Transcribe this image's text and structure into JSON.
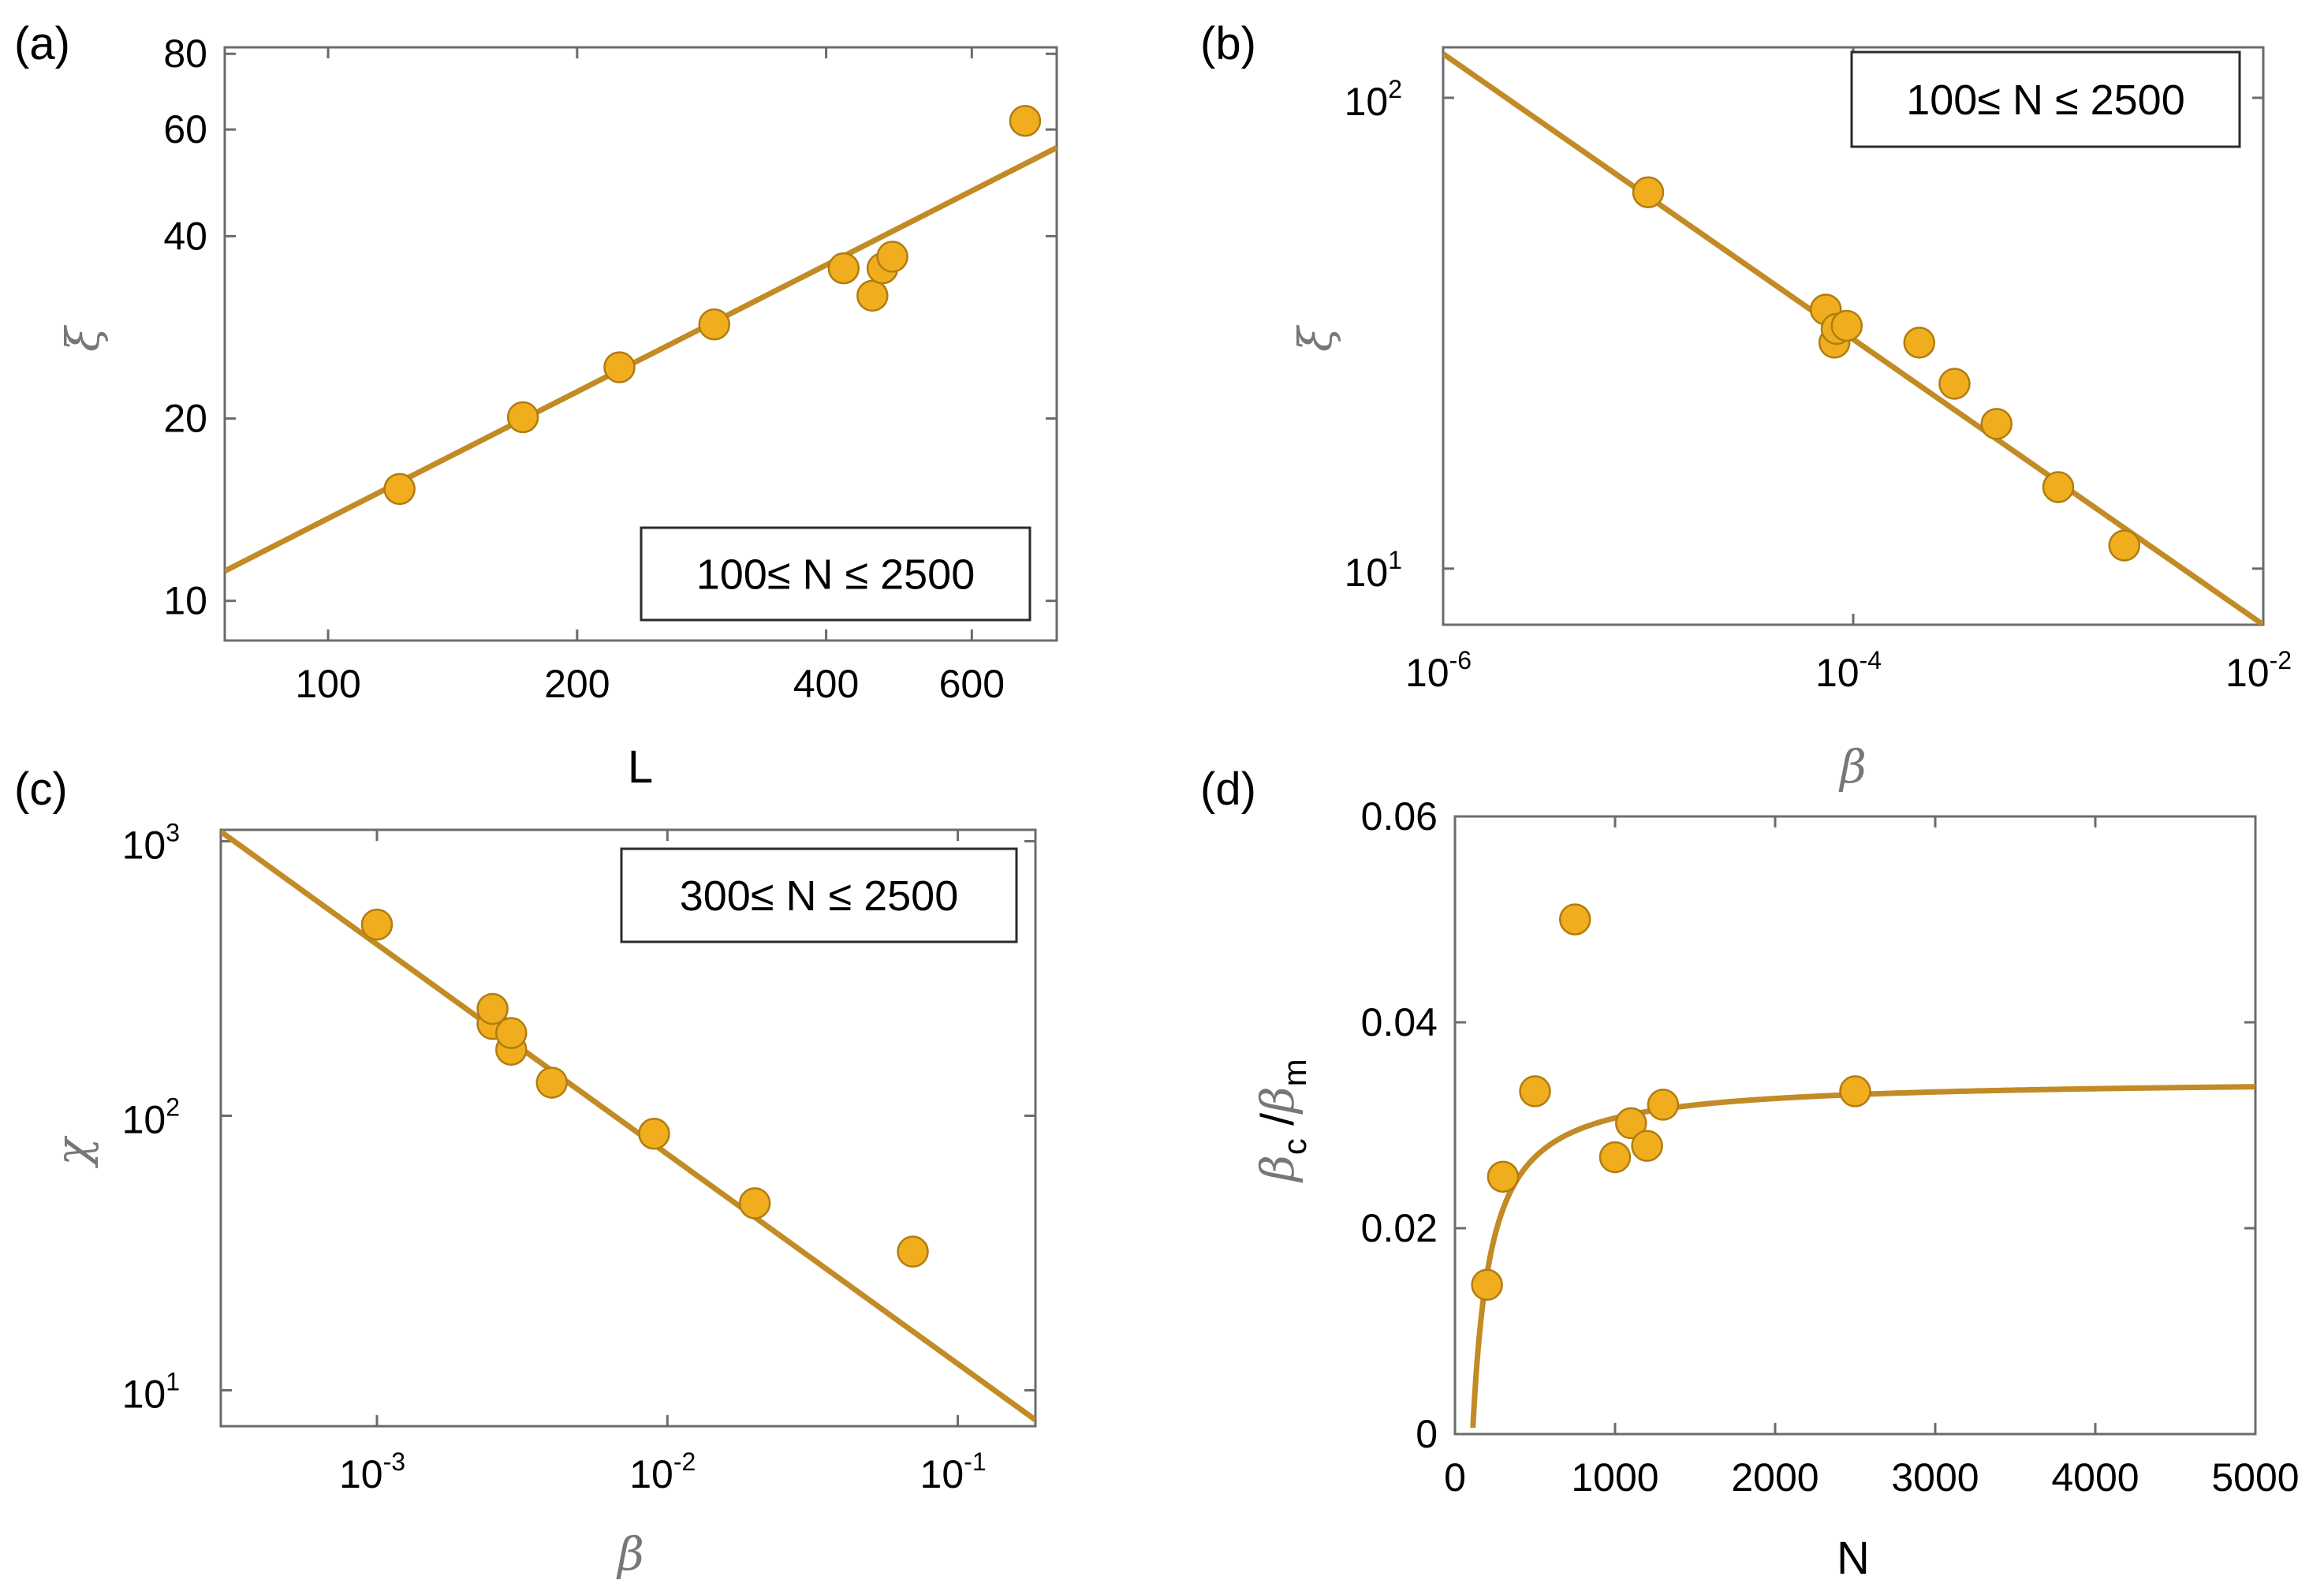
{
  "colors": {
    "marker_fill": "#f0ae1e",
    "marker_edge": "#b17c10",
    "fit_line": "#c28b25"
  },
  "chart_data": [
    {
      "panel": "a",
      "panel_label": "(a)",
      "type": "scatter",
      "xscale": "log",
      "yscale": "log",
      "xlabel": "L",
      "ylabel": "ξ",
      "xlim": [
        75,
        760
      ],
      "ylim": [
        8.6,
        82
      ],
      "xticks": [
        {
          "v": 100,
          "label": "100"
        },
        {
          "v": 200,
          "label": "200"
        },
        {
          "v": 400,
          "label": "400"
        },
        {
          "v": 600,
          "label": "600"
        }
      ],
      "yticks": [
        {
          "v": 10,
          "label": "10"
        },
        {
          "v": 20,
          "label": "20"
        },
        {
          "v": 40,
          "label": "40"
        },
        {
          "v": 60,
          "label": "60"
        },
        {
          "v": 80,
          "label": "80"
        }
      ],
      "legend": "100≤ N ≤ 2500",
      "legend_position": "bottom-right",
      "points": [
        {
          "x": 122,
          "y": 15.3
        },
        {
          "x": 172,
          "y": 20.1
        },
        {
          "x": 225,
          "y": 24.3
        },
        {
          "x": 293,
          "y": 28.6
        },
        {
          "x": 420,
          "y": 35.4
        },
        {
          "x": 455,
          "y": 31.9
        },
        {
          "x": 468,
          "y": 35.4
        },
        {
          "x": 481,
          "y": 37.0
        },
        {
          "x": 696,
          "y": 62.0
        }
      ],
      "fit": {
        "kind": "power",
        "points": [
          {
            "x": 75,
            "y": 11.2
          },
          {
            "x": 760,
            "y": 56.0
          }
        ]
      }
    },
    {
      "panel": "b",
      "panel_label": "(b)",
      "type": "scatter",
      "xscale": "log",
      "yscale": "log",
      "xlabel": "β",
      "ylabel": "ξ",
      "xlim": [
        1e-06,
        0.01
      ],
      "ylim": [
        7.6,
        128
      ],
      "xticks": [
        {
          "v": 1e-06,
          "base": "10",
          "exp": "-6"
        },
        {
          "v": 0.0001,
          "base": "10",
          "exp": "-4"
        },
        {
          "v": 0.01,
          "base": "10",
          "exp": "-2"
        }
      ],
      "yticks": [
        {
          "v": 10,
          "base": "10",
          "exp": "1"
        },
        {
          "v": 100,
          "base": "10",
          "exp": "2"
        }
      ],
      "legend": "100≤ N ≤ 2500",
      "legend_position": "top-right",
      "points": [
        {
          "x": 1e-05,
          "y": 63.0
        },
        {
          "x": 7.35e-05,
          "y": 35.5
        },
        {
          "x": 8.1e-05,
          "y": 30.2
        },
        {
          "x": 8.3e-05,
          "y": 32.3
        },
        {
          "x": 9.3e-05,
          "y": 32.8
        },
        {
          "x": 0.00021,
          "y": 30.2
        },
        {
          "x": 0.000312,
          "y": 24.7
        },
        {
          "x": 0.0005,
          "y": 20.3
        },
        {
          "x": 0.001,
          "y": 14.9
        },
        {
          "x": 0.0021,
          "y": 11.2
        }
      ],
      "fit": {
        "kind": "power",
        "points": [
          {
            "x": 1e-06,
            "y": 124
          },
          {
            "x": 0.01,
            "y": 7.6
          }
        ]
      }
    },
    {
      "panel": "c",
      "panel_label": "(c)",
      "type": "scatter",
      "xscale": "log",
      "yscale": "log",
      "xlabel": "β",
      "ylabel": "χ",
      "xlim": [
        0.00029,
        0.185
      ],
      "ylim": [
        7.4,
        1100
      ],
      "xticks": [
        {
          "v": 0.001,
          "base": "10",
          "exp": "-3"
        },
        {
          "v": 0.01,
          "base": "10",
          "exp": "-2"
        },
        {
          "v": 0.1,
          "base": "10",
          "exp": "-1"
        }
      ],
      "yticks": [
        {
          "v": 10,
          "base": "10",
          "exp": "1"
        },
        {
          "v": 100,
          "base": "10",
          "exp": "2"
        },
        {
          "v": 1000,
          "base": "10",
          "exp": "3"
        }
      ],
      "legend": "300≤ N ≤ 2500",
      "legend_position": "top-right",
      "points": [
        {
          "x": 0.001,
          "y": 497
        },
        {
          "x": 0.0025,
          "y": 216
        },
        {
          "x": 0.0025,
          "y": 245
        },
        {
          "x": 0.0029,
          "y": 174
        },
        {
          "x": 0.0029,
          "y": 200
        },
        {
          "x": 0.004,
          "y": 132
        },
        {
          "x": 0.009,
          "y": 86
        },
        {
          "x": 0.02,
          "y": 48
        },
        {
          "x": 0.07,
          "y": 32
        }
      ],
      "fit": {
        "kind": "power",
        "points": [
          {
            "x": 0.00029,
            "y": 1084
          },
          {
            "x": 0.185,
            "y": 7.8
          }
        ]
      }
    },
    {
      "panel": "d",
      "panel_label": "(d)",
      "type": "scatter",
      "xscale": "linear",
      "yscale": "linear",
      "xlabel": "N",
      "ylabel": "βc/βm",
      "ylabel_parts": {
        "b1": "β",
        "s1": "c",
        "slash": "/",
        "b2": "β",
        "s2": "m"
      },
      "xlim": [
        0,
        5000
      ],
      "ylim": [
        0,
        0.06
      ],
      "xticks": [
        {
          "v": 0,
          "label": "0"
        },
        {
          "v": 1000,
          "label": "1000"
        },
        {
          "v": 2000,
          "label": "2000"
        },
        {
          "v": 3000,
          "label": "3000"
        },
        {
          "v": 4000,
          "label": "4000"
        },
        {
          "v": 5000,
          "label": "5000"
        }
      ],
      "yticks": [
        {
          "v": 0,
          "label": "0"
        },
        {
          "v": 0.02,
          "label": "0.02"
        },
        {
          "v": 0.04,
          "label": "0.04"
        },
        {
          "v": 0.06,
          "label": "0.06"
        }
      ],
      "points": [
        {
          "x": 200,
          "y": 0.0145
        },
        {
          "x": 300,
          "y": 0.025
        },
        {
          "x": 500,
          "y": 0.0333
        },
        {
          "x": 750,
          "y": 0.05
        },
        {
          "x": 1000,
          "y": 0.0269
        },
        {
          "x": 1100,
          "y": 0.0302
        },
        {
          "x": 1200,
          "y": 0.028
        },
        {
          "x": 1300,
          "y": 0.032
        },
        {
          "x": 2500,
          "y": 0.0333
        }
      ],
      "fit": {
        "kind": "saturating",
        "a": 0.0345,
        "n0": 110,
        "xmin": 112,
        "xmax": 5000
      }
    }
  ]
}
